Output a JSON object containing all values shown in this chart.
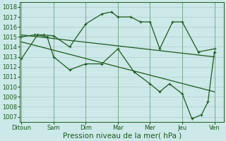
{
  "background_color": "#cce8e8",
  "grid_color": "#b0cccc",
  "line_color": "#1a5c1a",
  "marker_color": "#1a5c1a",
  "xlabel": "Pression niveau de la mer( hPa )",
  "xlabel_fontsize": 7.5,
  "tick_fontsize": 6.0,
  "ylim": [
    1006.5,
    1018.5
  ],
  "yticks": [
    1007,
    1008,
    1009,
    1010,
    1011,
    1012,
    1013,
    1014,
    1015,
    1016,
    1017,
    1018
  ],
  "x_labels": [
    "Ditoun",
    "Sam",
    "Dim",
    "Mar",
    "Mer",
    "Jeu",
    "Ven"
  ],
  "x_positions": [
    0,
    1,
    2,
    3,
    4,
    5,
    6
  ],
  "xlim": [
    -0.05,
    6.3
  ],
  "series1_nomarker": {
    "x": [
      0.0,
      6.0
    ],
    "y": [
      1015.2,
      1013.0
    ]
  },
  "series2_nomarker": {
    "x": [
      0.0,
      6.0
    ],
    "y": [
      1014.5,
      1009.5
    ]
  },
  "series3_zigzag": {
    "x": [
      0.0,
      0.4,
      0.7,
      1.0,
      1.5,
      2.0,
      2.5,
      2.8,
      3.0,
      3.4,
      3.7,
      4.0,
      4.3,
      4.7,
      5.0,
      5.5,
      6.0
    ],
    "y": [
      1015.0,
      1015.2,
      1015.2,
      1015.1,
      1014.0,
      1016.3,
      1017.3,
      1017.5,
      1017.0,
      1017.0,
      1016.5,
      1016.5,
      1013.8,
      1016.5,
      1016.5,
      1013.5,
      1013.8
    ]
  },
  "series4_lower": {
    "x": [
      0.0,
      0.5,
      0.8,
      1.0,
      1.5,
      2.0,
      2.5,
      3.0,
      3.5,
      4.0,
      4.3,
      4.6,
      5.0,
      5.3,
      5.6,
      5.8,
      6.0
    ],
    "y": [
      1012.8,
      1015.2,
      1015.0,
      1013.0,
      1011.7,
      1012.3,
      1012.3,
      1013.8,
      1011.5,
      1010.3,
      1009.5,
      1010.3,
      1009.3,
      1006.8,
      1007.2,
      1008.5,
      1013.5
    ]
  }
}
